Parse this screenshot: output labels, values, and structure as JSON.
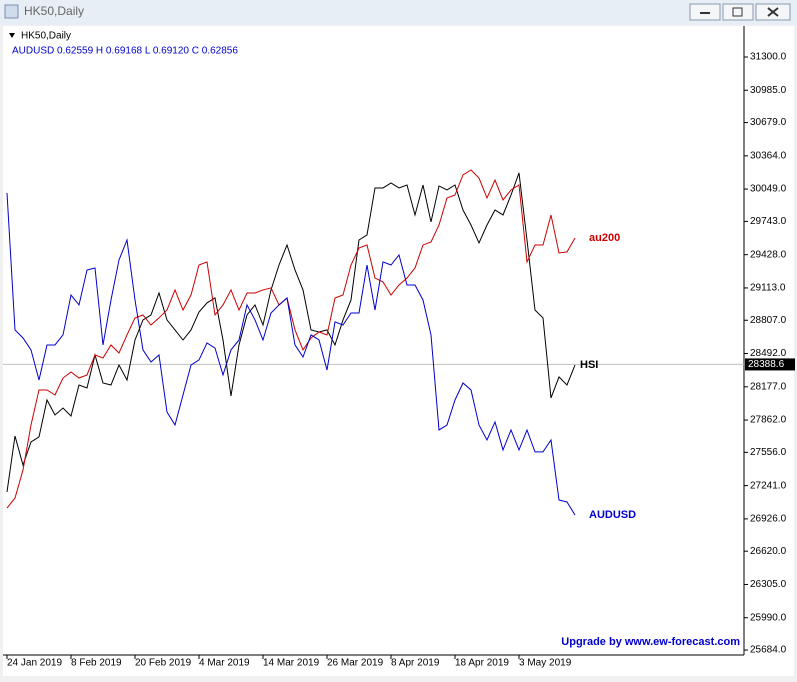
{
  "window_title": "HK50,Daily",
  "chart_data": {
    "type": "line",
    "title": "HK50,Daily",
    "subtitle": "AUDUSD 0.62559 H 0.69168 L 0.69120 C 0.62856",
    "footnote": "Upgrade by www.ew-forecast.com",
    "categories": [
      "24 Jan 2019",
      null,
      null,
      null,
      null,
      null,
      null,
      null,
      "8 Feb 2019",
      null,
      null,
      null,
      null,
      null,
      null,
      null,
      "20 Feb 2019",
      null,
      null,
      null,
      null,
      null,
      null,
      null,
      "4 Mar 2019",
      null,
      null,
      null,
      null,
      null,
      null,
      null,
      "14 Mar 2019",
      null,
      null,
      null,
      null,
      null,
      null,
      null,
      "26 Mar 2019",
      null,
      null,
      null,
      null,
      null,
      null,
      null,
      "8 Apr 2019",
      null,
      null,
      null,
      null,
      null,
      null,
      null,
      "18 Apr 2019",
      null,
      null,
      null,
      null,
      null,
      null,
      null,
      "3 May 2019",
      null,
      null,
      null,
      null,
      null,
      null,
      null
    ],
    "series": [
      {
        "name": "HSI",
        "color": "#000000",
        "values": [
          27181,
          27711,
          27436,
          27654,
          27702,
          28052,
          27910,
          27976,
          27900,
          28194,
          28166,
          28478,
          28213,
          28194,
          28383,
          28241,
          28620,
          28810,
          28857,
          29065,
          28810,
          28715,
          28620,
          28715,
          28885,
          28971,
          29018,
          28620,
          28090,
          28573,
          28857,
          28952,
          28762,
          29094,
          29330,
          29520,
          29283,
          29094,
          28715,
          28696,
          28715,
          28573,
          28810,
          28999,
          29567,
          29615,
          30060,
          30060,
          30107,
          30060,
          30088,
          29804,
          30088,
          29738,
          30079,
          30041,
          30088,
          29851,
          29709,
          29539,
          29709,
          29851,
          29804,
          29993,
          30202,
          29567,
          28904,
          28829,
          28071,
          28270,
          28194,
          28383
        ]
      },
      {
        "name": "au200",
        "color": "#cc0000",
        "values": [
          27029,
          27124,
          27389,
          27815,
          28147,
          28147,
          28099,
          28260,
          28317,
          28260,
          28289,
          28478,
          28450,
          28573,
          28497,
          28668,
          28829,
          28857,
          28762,
          28829,
          28904,
          29094,
          28904,
          29046,
          29330,
          29359,
          28857,
          28952,
          29094,
          28904,
          29065,
          29065,
          29094,
          29113,
          28952,
          29018,
          28715,
          28526,
          28639,
          28696,
          28668,
          29018,
          29046,
          29330,
          29491,
          29520,
          29207,
          29170,
          29046,
          29141,
          29207,
          29302,
          29520,
          29548,
          29709,
          29965,
          29993,
          30183,
          30230,
          30154,
          29965,
          30135,
          29946,
          30041,
          30088,
          29359,
          29520,
          29520,
          29804,
          29444,
          29454,
          29586
        ]
      },
      {
        "name": "AUDUSD",
        "color": "#0000cc",
        "values": [
          30012,
          28715,
          28639,
          28526,
          28241,
          28573,
          28573,
          28668,
          29046,
          28952,
          29283,
          29302,
          28573,
          28999,
          29378,
          29567,
          28999,
          28526,
          28412,
          28478,
          27938,
          27815,
          28099,
          28383,
          28431,
          28592,
          28544,
          28289,
          28526,
          28620,
          28952,
          28810,
          28620,
          28876,
          28952,
          29018,
          28573,
          28459,
          28668,
          28620,
          28336,
          28791,
          28762,
          28876,
          28876,
          29330,
          28904,
          29359,
          29330,
          29425,
          29141,
          29141,
          28999,
          28668,
          27768,
          27815,
          28052,
          28213,
          28147,
          27815,
          27673,
          27844,
          27579,
          27768,
          27579,
          27768,
          27560,
          27560,
          27673,
          27105,
          27086,
          26963
        ]
      }
    ],
    "last_price": {
      "value": 28388.6,
      "label": "28388.6"
    },
    "ylim": [
      25637,
      31603
    ],
    "yticks": [
      {
        "value": 31300,
        "label": "31300.0"
      },
      {
        "value": 30985,
        "label": "30985.0"
      },
      {
        "value": 30679,
        "label": "30679.0"
      },
      {
        "value": 30364,
        "label": "30364.0"
      },
      {
        "value": 30049,
        "label": "30049.0"
      },
      {
        "value": 29743,
        "label": "29743.0"
      },
      {
        "value": 29428,
        "label": "29428.0"
      },
      {
        "value": 29113,
        "label": "29113.0"
      },
      {
        "value": 28807,
        "label": "28807.0"
      },
      {
        "value": 28492,
        "label": "28492.0"
      },
      {
        "value": 28177,
        "label": "28177.0"
      },
      {
        "value": 27862,
        "label": "27862.0"
      },
      {
        "value": 27556,
        "label": "27556.0"
      },
      {
        "value": 27241,
        "label": "27241.0"
      },
      {
        "value": 26926,
        "label": "26926.0"
      },
      {
        "value": 26620,
        "label": "26620.0"
      },
      {
        "value": 26305,
        "label": "26305.0"
      },
      {
        "value": 25990,
        "label": "25990.0"
      },
      {
        "value": 25684,
        "label": "25684.0"
      }
    ],
    "grid": false
  }
}
